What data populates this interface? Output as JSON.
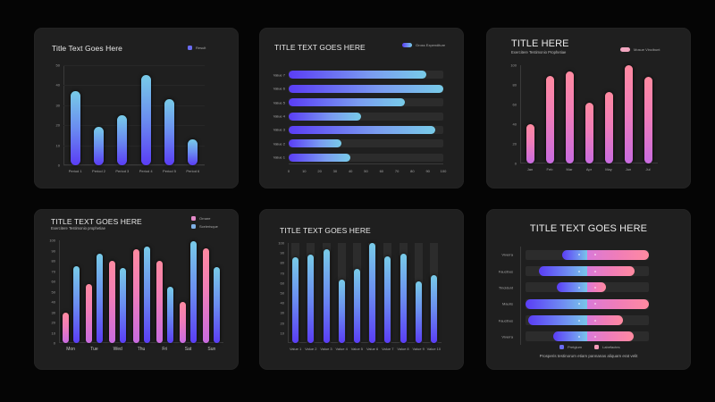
{
  "colors": {
    "page_bg": "#050505",
    "card_bg": "#1f1f1f",
    "blue_bright": "#5a3df5",
    "blue_light": "#78cbe8",
    "pink_light": "#ff8aa0",
    "pink_purple": "#c86be0",
    "track": "#2c2c2c"
  },
  "chart_data": [
    {
      "id": "chart1",
      "type": "bar",
      "title": "Title Text Goes Here",
      "legend": [
        "Result"
      ],
      "categories": [
        "Period 1",
        "Period 2",
        "Period 3",
        "Period 4",
        "Period 5",
        "Period 6"
      ],
      "values": [
        37,
        19,
        25,
        45,
        33,
        13
      ],
      "yticks": [
        "0",
        "10",
        "20",
        "30",
        "40",
        "50"
      ],
      "ylim": [
        0,
        50
      ],
      "grid": true,
      "legend_position": "top-right"
    },
    {
      "id": "chart2",
      "type": "bar",
      "orientation": "horizontal",
      "title": "TITLE TEXT GOES HERE",
      "legend": [
        "Gross Expenditure"
      ],
      "categories": [
        "Value 7",
        "Value 6",
        "Value 5",
        "Value 4",
        "Value 3",
        "Value 2",
        "Value 1"
      ],
      "values": [
        89,
        100,
        75,
        47,
        95,
        34,
        40
      ],
      "xticks": [
        "0",
        "10",
        "20",
        "30",
        "40",
        "50",
        "60",
        "70",
        "80",
        "90",
        "100"
      ],
      "xlim": [
        0,
        100
      ],
      "legend_position": "top-right"
    },
    {
      "id": "chart3",
      "type": "bar",
      "title": "TITLE HERE",
      "subtitle": "Exercitere Testimonio Prophetiae",
      "legend": [
        "Mosue Vincibunt"
      ],
      "categories": [
        "Jan",
        "Feb",
        "Mar",
        "Apr",
        "May",
        "Jun",
        "Jul"
      ],
      "values": [
        40,
        89,
        94,
        62,
        73,
        100,
        88
      ],
      "yticks": [
        "0",
        "20",
        "40",
        "60",
        "80",
        "100"
      ],
      "ylim": [
        0,
        100
      ],
      "legend_position": "top-right"
    },
    {
      "id": "chart4",
      "type": "bar",
      "title": "TITLE TEXT GOES HERE",
      "subtitle": "Exercitere Testimonio prophetiae",
      "categories": [
        "Mon",
        "Tue",
        "Wed",
        "Thu",
        "Fri",
        "Sat",
        "Sun"
      ],
      "series": [
        {
          "name": "Ornare",
          "values": [
            30,
            57,
            80,
            91,
            80,
            40,
            92
          ]
        },
        {
          "name": "Scelerisque",
          "values": [
            75,
            87,
            73,
            94,
            55,
            99,
            74
          ]
        }
      ],
      "yticks": [
        "0",
        "10",
        "20",
        "30",
        "40",
        "50",
        "60",
        "70",
        "80",
        "90",
        "100"
      ],
      "ylim": [
        0,
        100
      ],
      "legend_position": "top-right"
    },
    {
      "id": "chart5",
      "type": "bar",
      "title": "TITLE TEXT GOES HERE",
      "categories": [
        "Value 1",
        "Value 2",
        "Value 3",
        "Value 4",
        "Value 5",
        "Value 6",
        "Value 7",
        "Value 8",
        "Value 9",
        "Value 10"
      ],
      "values": [
        86,
        88,
        94,
        63,
        74,
        100,
        87,
        89,
        62,
        68
      ],
      "yticks": [
        "10",
        "20",
        "30",
        "40",
        "50",
        "60",
        "70",
        "80",
        "90",
        "100"
      ],
      "ylim": [
        0,
        100
      ]
    },
    {
      "id": "chart6",
      "type": "bar",
      "orientation": "horizontal-diverging",
      "title": "TITLE TEXT GOES HERE",
      "categories": [
        "Viverra",
        "Faucibus",
        "Tincidunt",
        "Mauris",
        "Faucibus",
        "Viverra"
      ],
      "series": [
        {
          "name": "Pretgium",
          "values": [
            40,
            78,
            50,
            100,
            95,
            55
          ]
        },
        {
          "name": "Labefactes",
          "values": [
            100,
            77,
            30,
            100,
            58,
            75
          ]
        }
      ],
      "footer": "Prosperis testinorum etiam pannanas aliquam erat velit",
      "legend_position": "bottom"
    }
  ]
}
